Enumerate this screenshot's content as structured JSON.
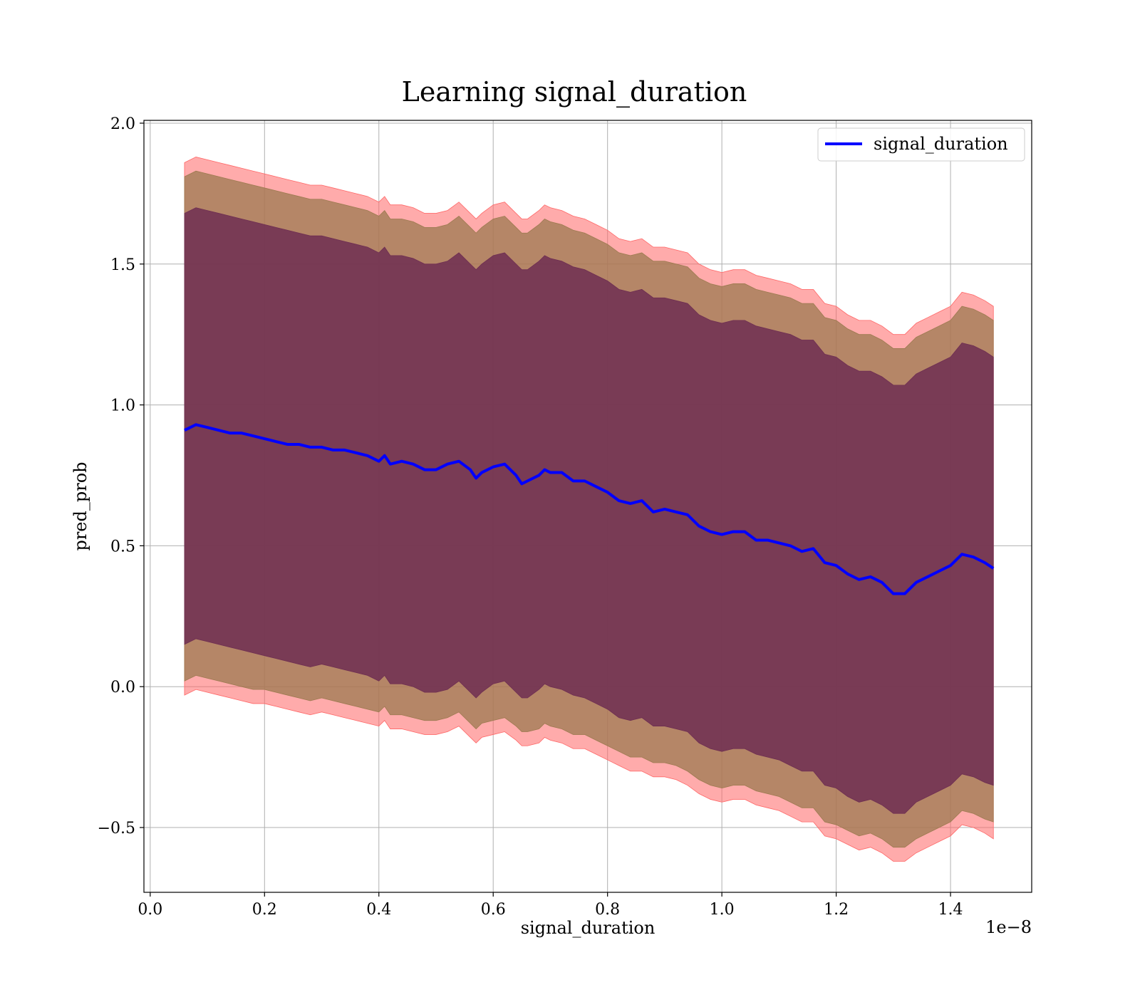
{
  "chart_data": {
    "type": "line",
    "title": "Learning signal_duration",
    "xlabel": "signal_duration",
    "ylabel": "pred_prob",
    "x_offset_label": "1e−8",
    "xlim": [
      -0.011,
      1.542
    ],
    "ylim": [
      -0.73,
      2.01
    ],
    "x_ticks": [
      0.0,
      0.2,
      0.4,
      0.6,
      0.8,
      1.0,
      1.2,
      1.4
    ],
    "x_tick_labels": [
      "0.0",
      "0.2",
      "0.4",
      "0.6",
      "0.8",
      "1.0",
      "1.2",
      "1.4"
    ],
    "y_ticks": [
      -0.5,
      0.0,
      0.5,
      1.0,
      1.5,
      2.0
    ],
    "y_tick_labels": [
      "−0.5",
      "0.0",
      "0.5",
      "1.0",
      "1.5",
      "2.0"
    ],
    "grid": true,
    "legend_position": "top-right",
    "colors": {
      "line": "#0000ff",
      "band_outer": "#ff6666",
      "band_middle": "#9c7a50",
      "band_inner": "#6e2e52",
      "grid": "#b0b0b0"
    },
    "x": [
      0.06,
      0.08,
      0.1,
      0.12,
      0.14,
      0.16,
      0.18,
      0.2,
      0.22,
      0.24,
      0.26,
      0.28,
      0.3,
      0.32,
      0.34,
      0.36,
      0.38,
      0.4,
      0.41,
      0.42,
      0.44,
      0.46,
      0.48,
      0.5,
      0.52,
      0.54,
      0.56,
      0.57,
      0.58,
      0.6,
      0.62,
      0.64,
      0.65,
      0.66,
      0.68,
      0.69,
      0.7,
      0.72,
      0.74,
      0.76,
      0.78,
      0.8,
      0.82,
      0.84,
      0.86,
      0.88,
      0.9,
      0.92,
      0.94,
      0.96,
      0.98,
      1.0,
      1.02,
      1.04,
      1.06,
      1.08,
      1.1,
      1.12,
      1.14,
      1.16,
      1.18,
      1.2,
      1.22,
      1.24,
      1.26,
      1.28,
      1.3,
      1.32,
      1.34,
      1.36,
      1.38,
      1.4,
      1.42,
      1.44,
      1.46,
      1.475
    ],
    "series": [
      {
        "name": "signal_duration",
        "values": [
          0.91,
          0.93,
          0.92,
          0.91,
          0.9,
          0.9,
          0.89,
          0.88,
          0.87,
          0.86,
          0.86,
          0.85,
          0.85,
          0.84,
          0.84,
          0.83,
          0.82,
          0.8,
          0.82,
          0.79,
          0.8,
          0.79,
          0.77,
          0.77,
          0.79,
          0.8,
          0.77,
          0.74,
          0.76,
          0.78,
          0.79,
          0.75,
          0.72,
          0.73,
          0.75,
          0.77,
          0.76,
          0.76,
          0.73,
          0.73,
          0.71,
          0.69,
          0.66,
          0.65,
          0.66,
          0.62,
          0.63,
          0.62,
          0.61,
          0.57,
          0.55,
          0.54,
          0.55,
          0.55,
          0.52,
          0.52,
          0.51,
          0.5,
          0.48,
          0.49,
          0.44,
          0.43,
          0.4,
          0.38,
          0.39,
          0.37,
          0.33,
          0.33,
          0.37,
          0.39,
          0.41,
          0.43,
          0.47,
          0.46,
          0.44,
          0.42
        ]
      }
    ],
    "bands": [
      {
        "lower": [
          -0.03,
          -0.01,
          -0.02,
          -0.03,
          -0.04,
          -0.05,
          -0.06,
          -0.06,
          -0.07,
          -0.08,
          -0.09,
          -0.1,
          -0.09,
          -0.1,
          -0.11,
          -0.12,
          -0.13,
          -0.14,
          -0.12,
          -0.15,
          -0.15,
          -0.16,
          -0.17,
          -0.17,
          -0.16,
          -0.14,
          -0.18,
          -0.2,
          -0.18,
          -0.17,
          -0.16,
          -0.19,
          -0.21,
          -0.21,
          -0.2,
          -0.18,
          -0.19,
          -0.2,
          -0.22,
          -0.22,
          -0.24,
          -0.26,
          -0.28,
          -0.3,
          -0.3,
          -0.32,
          -0.32,
          -0.33,
          -0.35,
          -0.38,
          -0.4,
          -0.41,
          -0.4,
          -0.4,
          -0.42,
          -0.43,
          -0.44,
          -0.46,
          -0.48,
          -0.48,
          -0.53,
          -0.54,
          -0.56,
          -0.58,
          -0.57,
          -0.59,
          -0.62,
          -0.62,
          -0.59,
          -0.57,
          -0.55,
          -0.53,
          -0.49,
          -0.5,
          -0.52,
          -0.54
        ],
        "upper": [
          1.86,
          1.88,
          1.87,
          1.86,
          1.85,
          1.84,
          1.83,
          1.82,
          1.81,
          1.8,
          1.79,
          1.78,
          1.78,
          1.77,
          1.76,
          1.75,
          1.74,
          1.72,
          1.74,
          1.71,
          1.71,
          1.7,
          1.68,
          1.68,
          1.69,
          1.72,
          1.68,
          1.66,
          1.68,
          1.71,
          1.72,
          1.68,
          1.66,
          1.66,
          1.69,
          1.71,
          1.7,
          1.69,
          1.67,
          1.66,
          1.64,
          1.62,
          1.59,
          1.58,
          1.59,
          1.56,
          1.56,
          1.55,
          1.54,
          1.5,
          1.48,
          1.47,
          1.48,
          1.48,
          1.46,
          1.45,
          1.44,
          1.43,
          1.41,
          1.41,
          1.36,
          1.35,
          1.32,
          1.3,
          1.3,
          1.28,
          1.25,
          1.25,
          1.29,
          1.31,
          1.33,
          1.35,
          1.4,
          1.39,
          1.37,
          1.35
        ]
      },
      {
        "lower": [
          0.02,
          0.04,
          0.03,
          0.02,
          0.01,
          0.0,
          -0.01,
          -0.01,
          -0.02,
          -0.03,
          -0.04,
          -0.05,
          -0.04,
          -0.05,
          -0.06,
          -0.07,
          -0.08,
          -0.09,
          -0.07,
          -0.1,
          -0.1,
          -0.11,
          -0.12,
          -0.12,
          -0.11,
          -0.09,
          -0.13,
          -0.15,
          -0.13,
          -0.12,
          -0.11,
          -0.14,
          -0.16,
          -0.16,
          -0.15,
          -0.13,
          -0.14,
          -0.15,
          -0.17,
          -0.17,
          -0.19,
          -0.21,
          -0.23,
          -0.25,
          -0.25,
          -0.27,
          -0.27,
          -0.28,
          -0.3,
          -0.33,
          -0.35,
          -0.36,
          -0.35,
          -0.35,
          -0.37,
          -0.38,
          -0.39,
          -0.41,
          -0.43,
          -0.43,
          -0.48,
          -0.49,
          -0.51,
          -0.53,
          -0.52,
          -0.54,
          -0.57,
          -0.57,
          -0.54,
          -0.52,
          -0.5,
          -0.48,
          -0.44,
          -0.45,
          -0.47,
          -0.48
        ],
        "upper": [
          1.81,
          1.83,
          1.82,
          1.81,
          1.8,
          1.79,
          1.78,
          1.77,
          1.76,
          1.75,
          1.74,
          1.73,
          1.73,
          1.72,
          1.71,
          1.7,
          1.69,
          1.67,
          1.69,
          1.66,
          1.66,
          1.65,
          1.63,
          1.63,
          1.64,
          1.67,
          1.63,
          1.61,
          1.63,
          1.66,
          1.67,
          1.63,
          1.61,
          1.61,
          1.64,
          1.66,
          1.65,
          1.64,
          1.62,
          1.61,
          1.59,
          1.57,
          1.54,
          1.53,
          1.54,
          1.51,
          1.51,
          1.5,
          1.49,
          1.45,
          1.43,
          1.42,
          1.43,
          1.43,
          1.41,
          1.4,
          1.39,
          1.38,
          1.36,
          1.36,
          1.31,
          1.3,
          1.27,
          1.25,
          1.25,
          1.23,
          1.2,
          1.2,
          1.24,
          1.26,
          1.28,
          1.3,
          1.35,
          1.34,
          1.32,
          1.3
        ]
      },
      {
        "lower": [
          0.15,
          0.17,
          0.16,
          0.15,
          0.14,
          0.13,
          0.12,
          0.11,
          0.1,
          0.09,
          0.08,
          0.07,
          0.08,
          0.07,
          0.06,
          0.05,
          0.04,
          0.02,
          0.04,
          0.01,
          0.01,
          0.0,
          -0.02,
          -0.02,
          -0.01,
          0.02,
          -0.02,
          -0.04,
          -0.02,
          0.01,
          0.02,
          -0.02,
          -0.04,
          -0.04,
          -0.01,
          0.01,
          0.0,
          -0.01,
          -0.03,
          -0.04,
          -0.06,
          -0.08,
          -0.11,
          -0.12,
          -0.11,
          -0.14,
          -0.14,
          -0.15,
          -0.16,
          -0.2,
          -0.22,
          -0.23,
          -0.22,
          -0.22,
          -0.24,
          -0.25,
          -0.26,
          -0.28,
          -0.3,
          -0.3,
          -0.35,
          -0.36,
          -0.39,
          -0.41,
          -0.4,
          -0.42,
          -0.45,
          -0.45,
          -0.41,
          -0.39,
          -0.37,
          -0.35,
          -0.31,
          -0.32,
          -0.34,
          -0.35
        ],
        "upper": [
          1.68,
          1.7,
          1.69,
          1.68,
          1.67,
          1.66,
          1.65,
          1.64,
          1.63,
          1.62,
          1.61,
          1.6,
          1.6,
          1.59,
          1.58,
          1.57,
          1.56,
          1.54,
          1.56,
          1.53,
          1.53,
          1.52,
          1.5,
          1.5,
          1.51,
          1.54,
          1.5,
          1.48,
          1.5,
          1.53,
          1.54,
          1.5,
          1.48,
          1.48,
          1.51,
          1.53,
          1.52,
          1.51,
          1.49,
          1.48,
          1.46,
          1.44,
          1.41,
          1.4,
          1.41,
          1.38,
          1.38,
          1.37,
          1.36,
          1.32,
          1.3,
          1.29,
          1.3,
          1.3,
          1.28,
          1.27,
          1.26,
          1.25,
          1.23,
          1.23,
          1.18,
          1.17,
          1.14,
          1.12,
          1.12,
          1.1,
          1.07,
          1.07,
          1.11,
          1.13,
          1.15,
          1.17,
          1.22,
          1.21,
          1.19,
          1.17
        ]
      }
    ],
    "legend": [
      "signal_duration"
    ]
  }
}
